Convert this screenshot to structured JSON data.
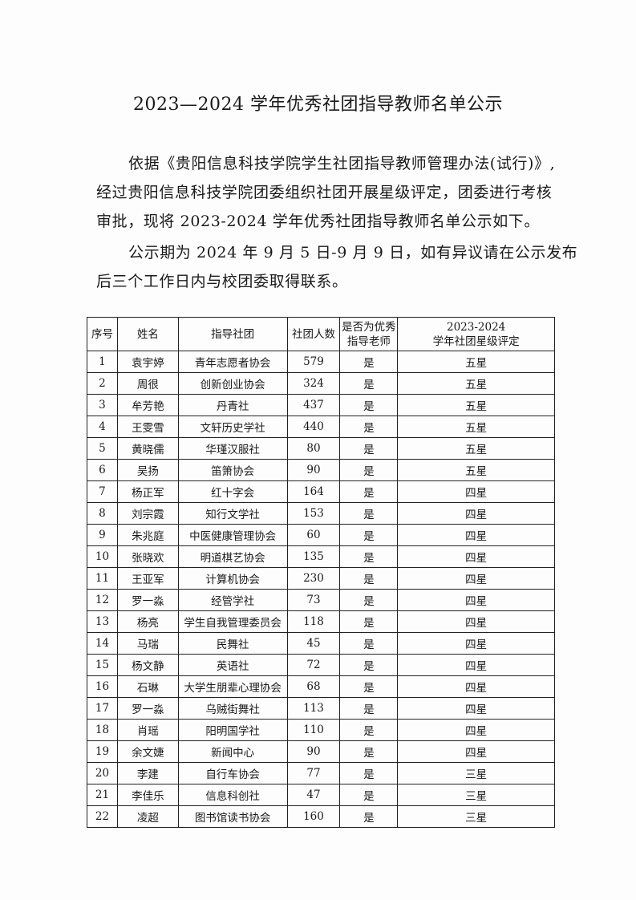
{
  "title": "2023—2024 学年优秀社团指导教师名单公示",
  "paragraphs": [
    [
      "依据《贵阳信息科技学院学生社团指导教师管理办法(试行)》,",
      "经过贵阳信息科技学院团委组织社团开展星级评定，团委进行考核",
      "审批，现将 2023-2024 学年优秀社团指导教师名单公示如下。"
    ],
    [
      "公示期为 2024 年 9 月 5 日-9 月 9 日，如有异议请在公示发布",
      "后三个工作日内与校团委取得联系。"
    ]
  ],
  "table": {
    "headers": [
      "序号",
      "姓名",
      "指导社团",
      "社团人数",
      "是否为优秀\n指导老师",
      "2023-2024\n学年社团星级评定"
    ],
    "rows": [
      [
        "1",
        "袁宇婷",
        "青年志愿者协会",
        "579",
        "是",
        "五星"
      ],
      [
        "2",
        "周很",
        "创新创业协会",
        "324",
        "是",
        "五星"
      ],
      [
        "3",
        "牟芳艳",
        "丹青社",
        "437",
        "是",
        "五星"
      ],
      [
        "4",
        "王雯雪",
        "文轩历史学社",
        "440",
        "是",
        "五星"
      ],
      [
        "5",
        "黄晓儒",
        "华瑾汉服社",
        "80",
        "是",
        "五星"
      ],
      [
        "6",
        "吴扬",
        "笛箫协会",
        "90",
        "是",
        "五星"
      ],
      [
        "7",
        "杨正军",
        "红十字会",
        "164",
        "是",
        "四星"
      ],
      [
        "8",
        "刘宗霞",
        "知行文学社",
        "153",
        "是",
        "四星"
      ],
      [
        "9",
        "朱兆庭",
        "中医健康管理协会",
        "60",
        "是",
        "四星"
      ],
      [
        "10",
        "张晓欢",
        "明道棋艺协会",
        "135",
        "是",
        "四星"
      ],
      [
        "11",
        "王亚军",
        "计算机协会",
        "230",
        "是",
        "四星"
      ],
      [
        "12",
        "罗一淼",
        "经管学社",
        "73",
        "是",
        "四星"
      ],
      [
        "13",
        "杨亮",
        "学生自我管理委员会",
        "118",
        "是",
        "四星"
      ],
      [
        "14",
        "马瑞",
        "民舞社",
        "45",
        "是",
        "四星"
      ],
      [
        "15",
        "杨文静",
        "英语社",
        "72",
        "是",
        "四星"
      ],
      [
        "16",
        "石琳",
        "大学生朋辈心理协会",
        "68",
        "是",
        "四星"
      ],
      [
        "17",
        "罗一淼",
        "乌贼街舞社",
        "113",
        "是",
        "四星"
      ],
      [
        "18",
        "肖瑶",
        "阳明国学社",
        "110",
        "是",
        "四星"
      ],
      [
        "19",
        "余文婕",
        "新闻中心",
        "90",
        "是",
        "四星"
      ],
      [
        "20",
        "李建",
        "自行车协会",
        "77",
        "是",
        "三星"
      ],
      [
        "21",
        "李佳乐",
        "信息科创社",
        "47",
        "是",
        "三星"
      ],
      [
        "22",
        "凌超",
        "图书馆读书协会",
        "160",
        "是",
        "三星"
      ]
    ]
  }
}
